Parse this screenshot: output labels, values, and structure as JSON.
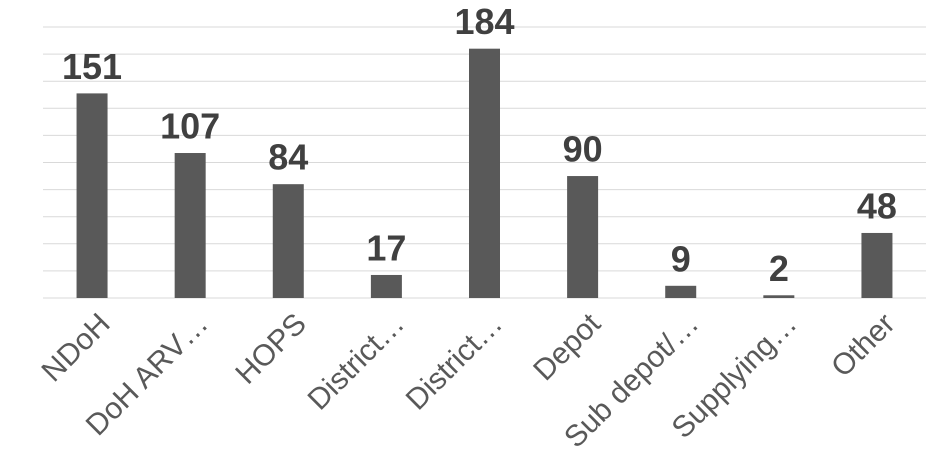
{
  "chart_data": {
    "type": "bar",
    "categories": [
      "NDoH",
      "DoH ARV…",
      "HOPS",
      "District…",
      "District…",
      "Depot",
      "Sub depot/…",
      "Supplying…",
      "Other"
    ],
    "values": [
      151,
      107,
      84,
      17,
      184,
      90,
      9,
      2,
      48
    ],
    "color": "#595959",
    "ylim": [
      0,
      200
    ],
    "yticks": [
      0,
      20,
      40,
      60,
      80,
      100,
      120,
      140,
      160,
      180,
      200
    ],
    "grid": true
  }
}
